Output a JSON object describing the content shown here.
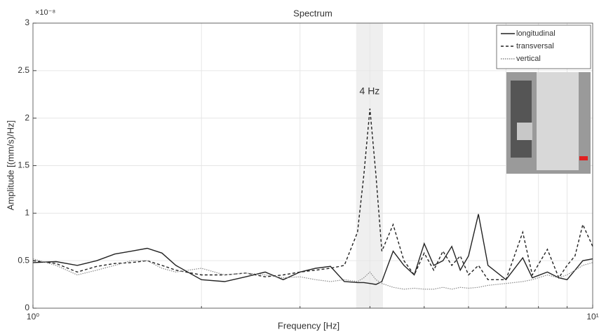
{
  "chart_data": {
    "type": "line",
    "title": "Spectrum",
    "xlabel": "Frequency [Hz]",
    "ylabel": "Amplitude [(mm/s)/Hz]",
    "y_multiplier": "×10⁻⁸",
    "annotation": "4 Hz",
    "highlight": [
      3.78,
      4.22
    ],
    "xscale": "log",
    "grid": true,
    "xlim": [
      1,
      10
    ],
    "xticks": [
      {
        "value": 1,
        "label": "10⁰"
      },
      {
        "value": 10,
        "label": "10¹"
      }
    ],
    "xminor": [
      2,
      3,
      4,
      5,
      6,
      7,
      8,
      9
    ],
    "ylim": [
      0,
      3
    ],
    "yticks": [
      0,
      0.5,
      1,
      1.5,
      2,
      2.5,
      3
    ],
    "legend": "upper right",
    "x": [
      1,
      1.1,
      1.2,
      1.3,
      1.4,
      1.5,
      1.6,
      1.7,
      1.8,
      2,
      2.2,
      2.4,
      2.6,
      2.8,
      3,
      3.2,
      3.4,
      3.6,
      3.8,
      3.9,
      4,
      4.1,
      4.2,
      4.4,
      4.6,
      4.8,
      5,
      5.2,
      5.4,
      5.6,
      5.8,
      6,
      6.25,
      6.5,
      7,
      7.5,
      7.8,
      8.3,
      8.7,
      9,
      9.3,
      9.6,
      10
    ],
    "series": [
      {
        "name": "longitudinal",
        "color": "#222222",
        "dash": "none",
        "values": [
          0.48,
          0.49,
          0.45,
          0.5,
          0.57,
          0.6,
          0.63,
          0.58,
          0.45,
          0.3,
          0.28,
          0.33,
          0.38,
          0.3,
          0.38,
          0.42,
          0.44,
          0.28,
          0.27,
          0.27,
          0.26,
          0.25,
          0.28,
          0.6,
          0.45,
          0.35,
          0.68,
          0.45,
          0.5,
          0.65,
          0.4,
          0.55,
          0.99,
          0.45,
          0.3,
          0.53,
          0.32,
          0.38,
          0.32,
          0.3,
          0.4,
          0.5,
          0.52
        ]
      },
      {
        "name": "transversal",
        "color": "#222222",
        "dash": "4,3",
        "values": [
          0.5,
          0.47,
          0.38,
          0.44,
          0.47,
          0.48,
          0.5,
          0.45,
          0.4,
          0.35,
          0.35,
          0.37,
          0.33,
          0.35,
          0.38,
          0.4,
          0.42,
          0.45,
          0.8,
          1.4,
          2.1,
          1.4,
          0.6,
          0.88,
          0.5,
          0.35,
          0.58,
          0.4,
          0.6,
          0.45,
          0.55,
          0.35,
          0.45,
          0.3,
          0.3,
          0.8,
          0.35,
          0.62,
          0.32,
          0.45,
          0.55,
          0.88,
          0.65
        ]
      },
      {
        "name": "vertical",
        "color": "#888888",
        "dash": "1.5,1.5",
        "values": [
          0.52,
          0.45,
          0.35,
          0.4,
          0.45,
          0.5,
          0.5,
          0.42,
          0.38,
          0.42,
          0.35,
          0.37,
          0.35,
          0.32,
          0.33,
          0.3,
          0.28,
          0.3,
          0.28,
          0.32,
          0.38,
          0.3,
          0.26,
          0.22,
          0.2,
          0.21,
          0.2,
          0.2,
          0.22,
          0.2,
          0.22,
          0.21,
          0.22,
          0.24,
          0.26,
          0.28,
          0.3,
          0.35,
          0.32,
          0.35,
          0.4,
          0.45,
          0.48
        ]
      }
    ]
  }
}
